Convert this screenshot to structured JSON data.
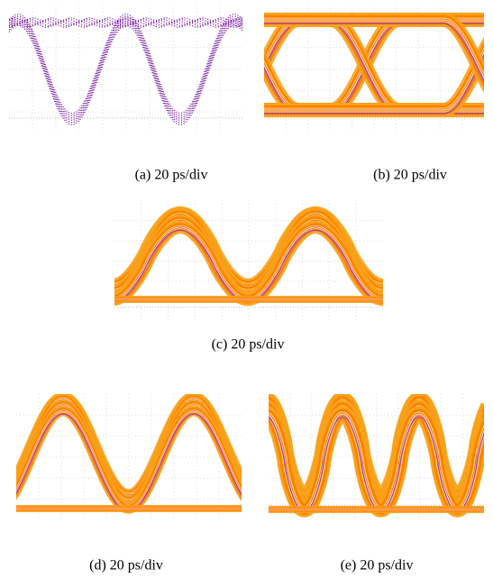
{
  "figure": {
    "captions": [
      "(a) 20 ps/div",
      "(b) 20 ps/div",
      "(c) 20 ps/div",
      "(d) 20 ps/div",
      "(e) 20 ps/div"
    ]
  }
}
